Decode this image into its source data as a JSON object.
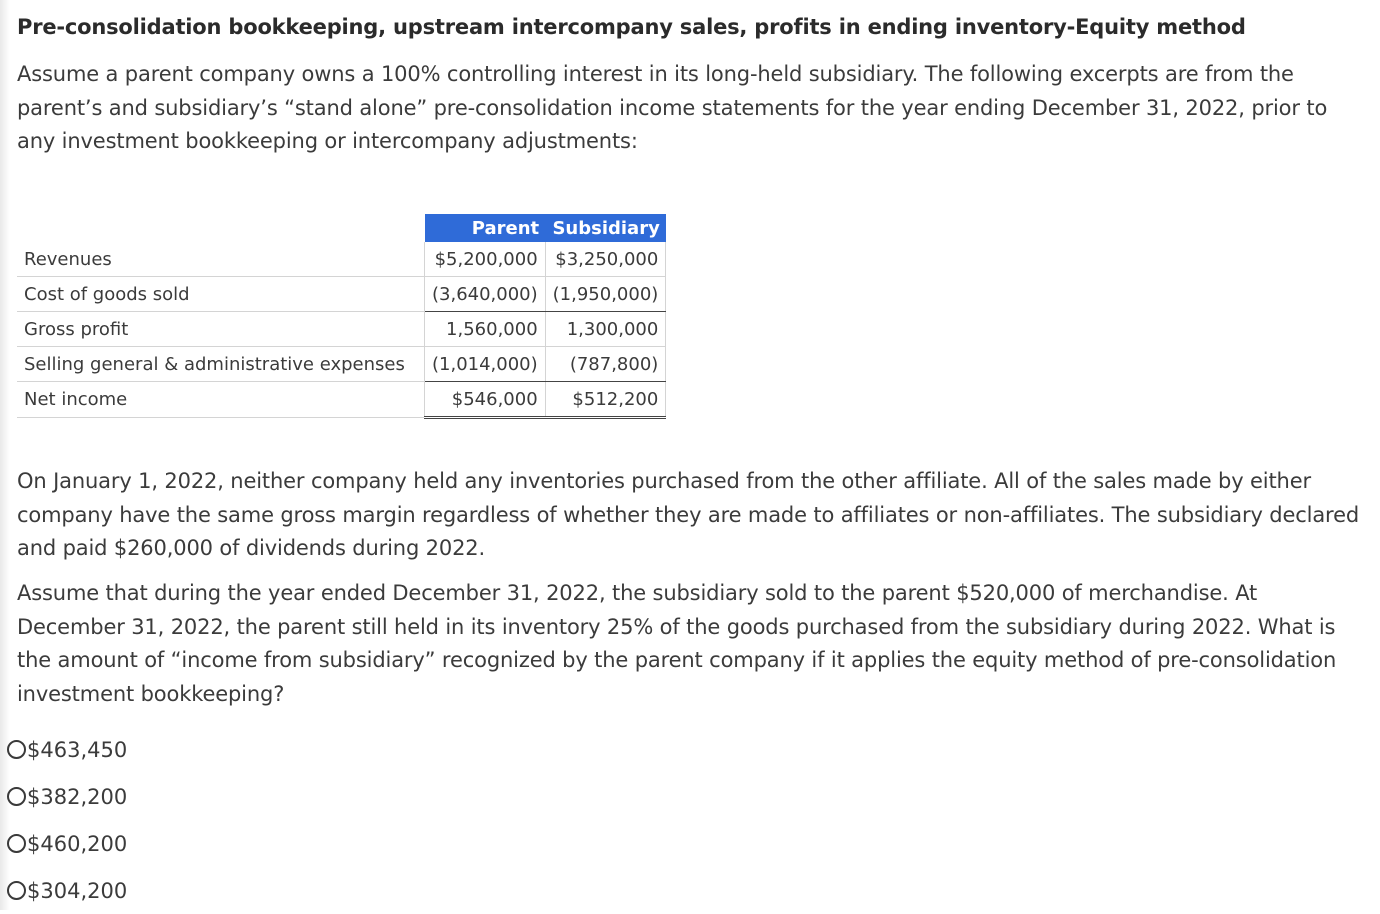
{
  "question": {
    "title": "Pre-consolidation bookkeeping, upstream intercompany sales, profits in ending inventory-Equity method",
    "intro": "Assume a parent company owns a 100% controlling interest in its long-held subsidiary. The following excerpts are from the parent’s and subsidiary’s “stand alone” pre-consolidation income statements for the year ending December 31, 2022, prior to any investment bookkeeping or intercompany adjustments:",
    "para2": "On January 1, 2022, neither company held any inventories purchased from the other affiliate. All of the sales made by either company have the same gross margin regardless of whether they are made to affiliates or non-affiliates. The subsidiary declared and paid $260,000 of dividends during 2022.",
    "para3": "Assume that during the year ended December 31, 2022, the subsidiary sold to the parent $520,000 of merchandise. At December 31, 2022, the parent still held in its inventory 25% of the goods purchased from the subsidiary during 2022. What is the amount of “income from subsidiary” recognized by the parent company if it applies the equity method of pre-consolidation investment bookkeeping?"
  },
  "table": {
    "header": {
      "parent": "Parent",
      "subsidiary": "Subsidiary"
    },
    "header_color": "#2f6bd8",
    "rows": [
      {
        "label": "Revenues",
        "parent": "$5,200,000",
        "subsidiary": "$3,250,000"
      },
      {
        "label": "Cost of goods sold",
        "parent": "(3,640,000)",
        "subsidiary": "(1,950,000)"
      },
      {
        "label": "Gross profit",
        "parent": "1,560,000",
        "subsidiary": "1,300,000"
      },
      {
        "label": "Selling general & administrative expenses",
        "parent": "(1,014,000)",
        "subsidiary": "(787,800)"
      },
      {
        "label": "Net income",
        "parent": "$546,000",
        "subsidiary": "$512,200"
      }
    ]
  },
  "options": [
    {
      "label": "$463,450",
      "icon": "radio-icon"
    },
    {
      "label": "$382,200",
      "icon": "radio-icon"
    },
    {
      "label": "$460,200",
      "icon": "radio-icon"
    },
    {
      "label": "$304,200",
      "icon": "radio-icon"
    }
  ]
}
